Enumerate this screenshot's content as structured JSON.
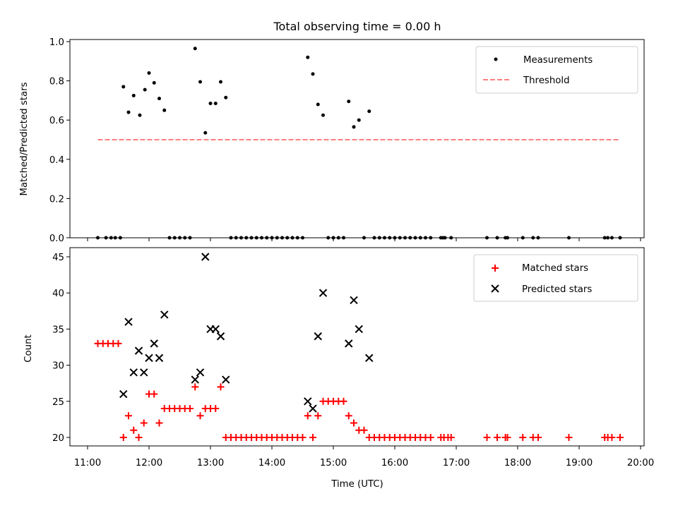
{
  "figure_title": "Total observing time = 0.00 h",
  "chart_data": [
    {
      "type": "scatter",
      "xlabel": "",
      "ylabel": "Matched/Predicted stars",
      "xlim": [
        "11:00",
        "20:00"
      ],
      "ylim": [
        0,
        1.0
      ],
      "y_ticks": [
        "0.0",
        "0.2",
        "0.4",
        "0.6",
        "0.8",
        "1.0"
      ],
      "legend": {
        "placement": "top-right",
        "entries": [
          "Measurements",
          "Threshold"
        ]
      },
      "colors": {
        "measurements": "#000000",
        "threshold": "#ff7f7f"
      },
      "series": [
        {
          "name": "Measurements",
          "marker": "dot",
          "points": [
            [
              "11:10",
              0
            ],
            [
              "11:18",
              0
            ],
            [
              "11:23",
              0
            ],
            [
              "11:27",
              0
            ],
            [
              "11:32",
              0
            ],
            [
              "11:35",
              0.77
            ],
            [
              "11:40",
              0.64
            ],
            [
              "11:45",
              0.725
            ],
            [
              "11:51",
              0.625
            ],
            [
              "11:56",
              0.755
            ],
            [
              "12:00",
              0.84
            ],
            [
              "12:05",
              0.79
            ],
            [
              "12:10",
              0.71
            ],
            [
              "12:15",
              0.65
            ],
            [
              "12:20",
              0
            ],
            [
              "12:25",
              0
            ],
            [
              "12:30",
              0
            ],
            [
              "12:35",
              0
            ],
            [
              "12:40",
              0
            ],
            [
              "12:45",
              0.965
            ],
            [
              "12:50",
              0.795
            ],
            [
              "12:55",
              0.535
            ],
            [
              "13:00",
              0.685
            ],
            [
              "13:05",
              0.685
            ],
            [
              "13:10",
              0.795
            ],
            [
              "13:15",
              0.715
            ],
            [
              "13:20",
              0
            ],
            [
              "13:25",
              0
            ],
            [
              "13:30",
              0
            ],
            [
              "13:35",
              0
            ],
            [
              "13:40",
              0
            ],
            [
              "13:45",
              0
            ],
            [
              "13:50",
              0
            ],
            [
              "13:55",
              0
            ],
            [
              "14:00",
              0
            ],
            [
              "14:05",
              0
            ],
            [
              "14:10",
              0
            ],
            [
              "14:15",
              0
            ],
            [
              "14:20",
              0
            ],
            [
              "14:25",
              0
            ],
            [
              "14:30",
              0
            ],
            [
              "14:35",
              0.92
            ],
            [
              "14:40",
              0.835
            ],
            [
              "14:45",
              0.68
            ],
            [
              "14:50",
              0.625
            ],
            [
              "14:55",
              0
            ],
            [
              "15:00",
              0
            ],
            [
              "15:05",
              0
            ],
            [
              "15:10",
              0
            ],
            [
              "15:15",
              0.695
            ],
            [
              "15:20",
              0.565
            ],
            [
              "15:25",
              0.6
            ],
            [
              "15:30",
              0
            ],
            [
              "15:35",
              0.645
            ],
            [
              "15:40",
              0
            ],
            [
              "15:45",
              0
            ],
            [
              "15:50",
              0
            ],
            [
              "15:55",
              0
            ],
            [
              "16:00",
              0
            ],
            [
              "16:05",
              0
            ],
            [
              "16:10",
              0
            ],
            [
              "16:15",
              0
            ],
            [
              "16:20",
              0
            ],
            [
              "16:25",
              0
            ],
            [
              "16:30",
              0
            ],
            [
              "16:35",
              0
            ],
            [
              "16:45",
              0
            ],
            [
              "16:47",
              0
            ],
            [
              "16:49",
              0
            ],
            [
              "16:55",
              0
            ],
            [
              "17:30",
              0
            ],
            [
              "17:40",
              0
            ],
            [
              "17:48",
              0
            ],
            [
              "17:50",
              0
            ],
            [
              "18:05",
              0
            ],
            [
              "18:15",
              0
            ],
            [
              "18:20",
              0
            ],
            [
              "18:50",
              0
            ],
            [
              "19:25",
              0
            ],
            [
              "19:28",
              0
            ],
            [
              "19:32",
              0
            ],
            [
              "19:40",
              0
            ]
          ]
        },
        {
          "name": "Threshold",
          "style": "dashed",
          "points": [
            [
              "11:10",
              0.5
            ],
            [
              "19:40",
              0.5
            ]
          ]
        }
      ]
    },
    {
      "type": "scatter",
      "xlabel": "Time (UTC)",
      "ylabel": "Count",
      "xlim": [
        "11:00",
        "20:00"
      ],
      "ylim": [
        20,
        45
      ],
      "x_ticks": [
        "11:00",
        "12:00",
        "13:00",
        "14:00",
        "15:00",
        "16:00",
        "17:00",
        "18:00",
        "19:00",
        "20:00"
      ],
      "y_ticks": [
        "20",
        "25",
        "30",
        "35",
        "40",
        "45"
      ],
      "legend": {
        "placement": "top-right",
        "entries": [
          "Matched stars",
          "Predicted stars"
        ]
      },
      "colors": {
        "matched": "#ff0000",
        "predicted": "#000000"
      },
      "series": [
        {
          "name": "Matched stars",
          "marker": "plus",
          "points": [
            [
              "11:10",
              33
            ],
            [
              "11:15",
              33
            ],
            [
              "11:20",
              33
            ],
            [
              "11:25",
              33
            ],
            [
              "11:30",
              33
            ],
            [
              "11:35",
              20
            ],
            [
              "11:40",
              23
            ],
            [
              "11:45",
              21
            ],
            [
              "11:50",
              20
            ],
            [
              "11:55",
              22
            ],
            [
              "12:00",
              26
            ],
            [
              "12:05",
              26
            ],
            [
              "12:10",
              22
            ],
            [
              "12:15",
              24
            ],
            [
              "12:20",
              24
            ],
            [
              "12:25",
              24
            ],
            [
              "12:30",
              24
            ],
            [
              "12:35",
              24
            ],
            [
              "12:40",
              24
            ],
            [
              "12:45",
              27
            ],
            [
              "12:50",
              23
            ],
            [
              "12:55",
              24
            ],
            [
              "13:00",
              24
            ],
            [
              "13:05",
              24
            ],
            [
              "13:10",
              27
            ],
            [
              "13:15",
              20
            ],
            [
              "13:20",
              20
            ],
            [
              "13:25",
              20
            ],
            [
              "13:30",
              20
            ],
            [
              "13:35",
              20
            ],
            [
              "13:40",
              20
            ],
            [
              "13:45",
              20
            ],
            [
              "13:50",
              20
            ],
            [
              "13:55",
              20
            ],
            [
              "14:00",
              20
            ],
            [
              "14:05",
              20
            ],
            [
              "14:10",
              20
            ],
            [
              "14:15",
              20
            ],
            [
              "14:20",
              20
            ],
            [
              "14:25",
              20
            ],
            [
              "14:30",
              20
            ],
            [
              "14:35",
              23
            ],
            [
              "14:40",
              20
            ],
            [
              "14:45",
              23
            ],
            [
              "14:50",
              25
            ],
            [
              "14:55",
              25
            ],
            [
              "15:00",
              25
            ],
            [
              "15:05",
              25
            ],
            [
              "15:10",
              25
            ],
            [
              "15:15",
              23
            ],
            [
              "15:20",
              22
            ],
            [
              "15:25",
              21
            ],
            [
              "15:30",
              21
            ],
            [
              "15:35",
              20
            ],
            [
              "15:40",
              20
            ],
            [
              "15:45",
              20
            ],
            [
              "15:50",
              20
            ],
            [
              "15:55",
              20
            ],
            [
              "16:00",
              20
            ],
            [
              "16:05",
              20
            ],
            [
              "16:10",
              20
            ],
            [
              "16:15",
              20
            ],
            [
              "16:20",
              20
            ],
            [
              "16:25",
              20
            ],
            [
              "16:30",
              20
            ],
            [
              "16:35",
              20
            ],
            [
              "16:45",
              20
            ],
            [
              "16:48",
              20
            ],
            [
              "16:52",
              20
            ],
            [
              "16:55",
              20
            ],
            [
              "17:30",
              20
            ],
            [
              "17:40",
              20
            ],
            [
              "17:48",
              20
            ],
            [
              "17:50",
              20
            ],
            [
              "18:05",
              20
            ],
            [
              "18:15",
              20
            ],
            [
              "18:20",
              20
            ],
            [
              "18:50",
              20
            ],
            [
              "19:25",
              20
            ],
            [
              "19:28",
              20
            ],
            [
              "19:32",
              20
            ],
            [
              "19:40",
              20
            ]
          ]
        },
        {
          "name": "Predicted stars",
          "marker": "x",
          "points": [
            [
              "11:35",
              26
            ],
            [
              "11:40",
              36
            ],
            [
              "11:45",
              29
            ],
            [
              "11:50",
              32
            ],
            [
              "11:55",
              29
            ],
            [
              "12:00",
              31
            ],
            [
              "12:05",
              33
            ],
            [
              "12:10",
              31
            ],
            [
              "12:15",
              37
            ],
            [
              "12:45",
              28
            ],
            [
              "12:50",
              29
            ],
            [
              "12:55",
              45
            ],
            [
              "13:00",
              35
            ],
            [
              "13:05",
              35
            ],
            [
              "13:10",
              34
            ],
            [
              "13:15",
              28
            ],
            [
              "14:35",
              25
            ],
            [
              "14:40",
              24
            ],
            [
              "14:45",
              34
            ],
            [
              "14:50",
              40
            ],
            [
              "15:15",
              33
            ],
            [
              "15:20",
              39
            ],
            [
              "15:25",
              35
            ],
            [
              "15:35",
              31
            ]
          ]
        }
      ]
    }
  ]
}
